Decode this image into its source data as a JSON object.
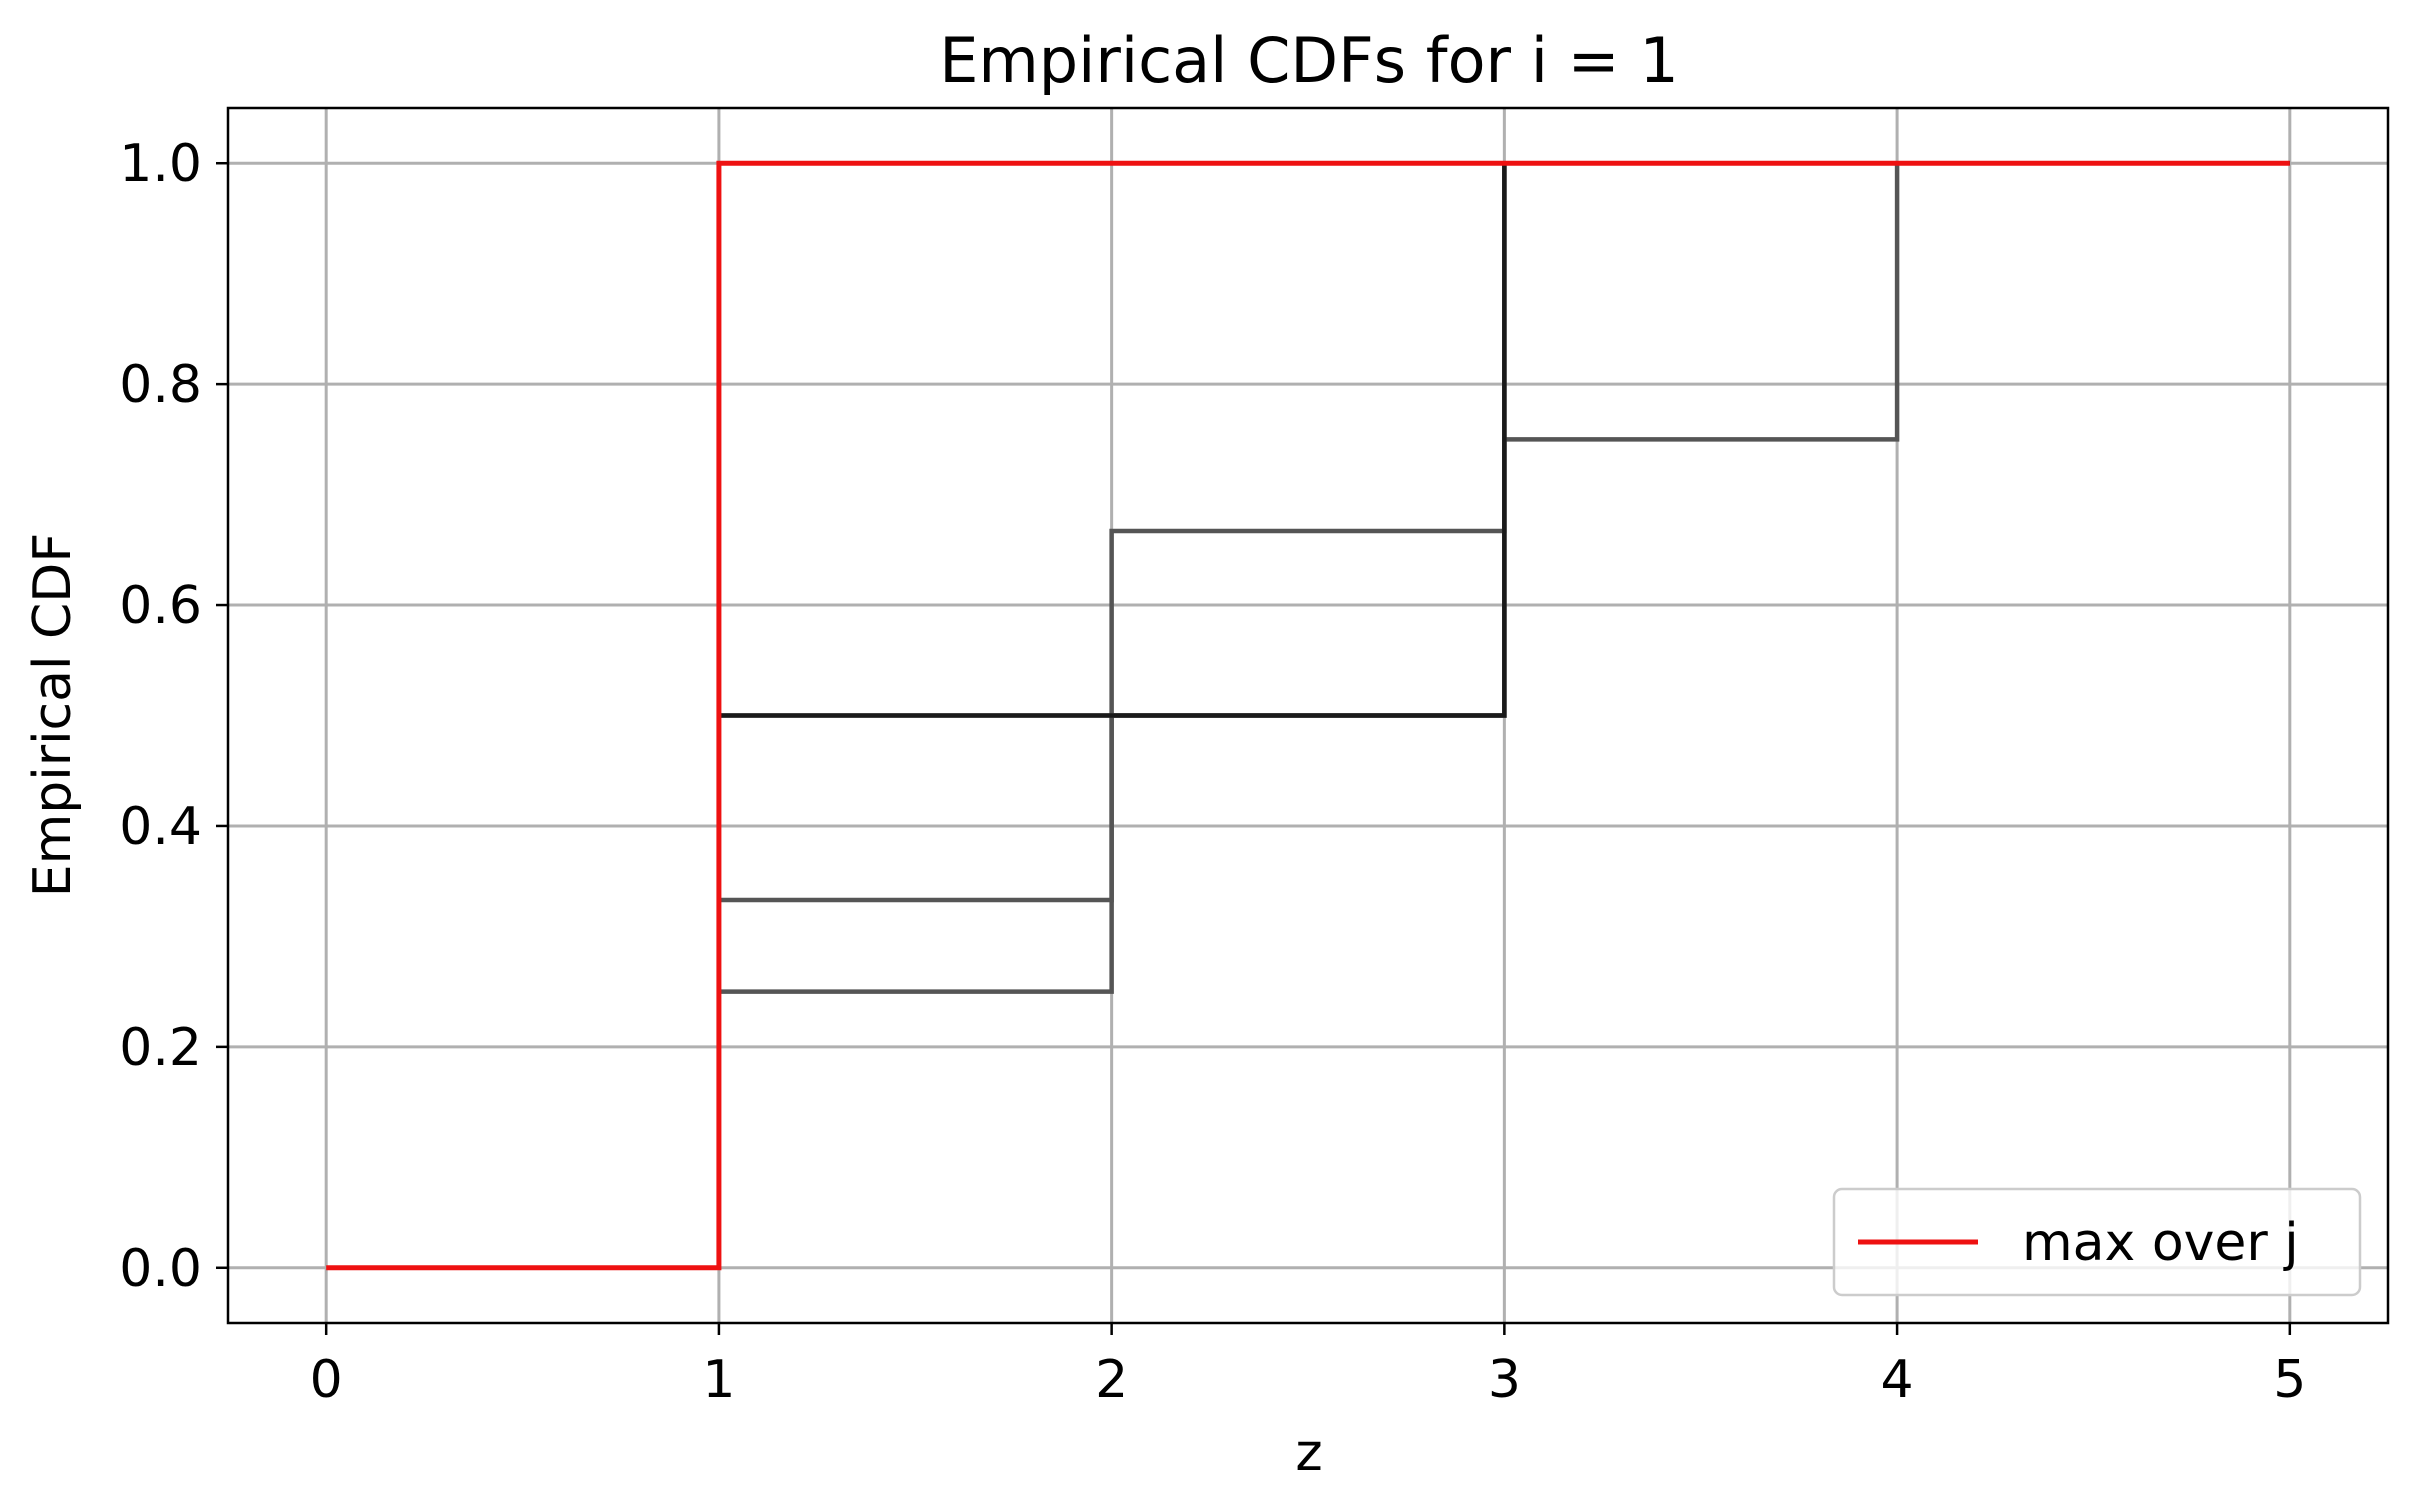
{
  "chart_data": {
    "type": "line",
    "title": "Empirical CDFs for i = 1",
    "xlabel": "z",
    "ylabel": "Empirical CDF",
    "xlim": [
      -0.25,
      5.25
    ],
    "ylim": [
      -0.05,
      1.05
    ],
    "x_ticks": [
      "0",
      "1",
      "2",
      "3",
      "4",
      "5"
    ],
    "y_ticks": [
      "0.0",
      "0.2",
      "0.4",
      "0.6",
      "0.8",
      "1.0"
    ],
    "grid": true,
    "legend_position": "lower right",
    "step": "post",
    "series": [
      {
        "color": "#555555",
        "x": [
          1,
          2,
          3,
          4,
          5
        ],
        "y": [
          0.25,
          0.5,
          0.75,
          1.0,
          1.0
        ]
      },
      {
        "color": "#555555",
        "x": [
          1,
          2,
          3,
          5
        ],
        "y": [
          0.333,
          0.667,
          1.0,
          1.0
        ]
      },
      {
        "color": "#555555",
        "x": [
          1,
          2,
          3,
          5
        ],
        "y": [
          0.5,
          0.5,
          1.0,
          1.0
        ]
      },
      {
        "color": "#1a1a1a",
        "x": [
          1,
          2,
          3,
          5
        ],
        "y": [
          0.5,
          0.5,
          1.0,
          1.0
        ]
      },
      {
        "name": "max over j",
        "color": "#ee1111",
        "x": [
          0,
          1,
          5
        ],
        "y": [
          0.0,
          1.0,
          1.0
        ]
      }
    ]
  }
}
